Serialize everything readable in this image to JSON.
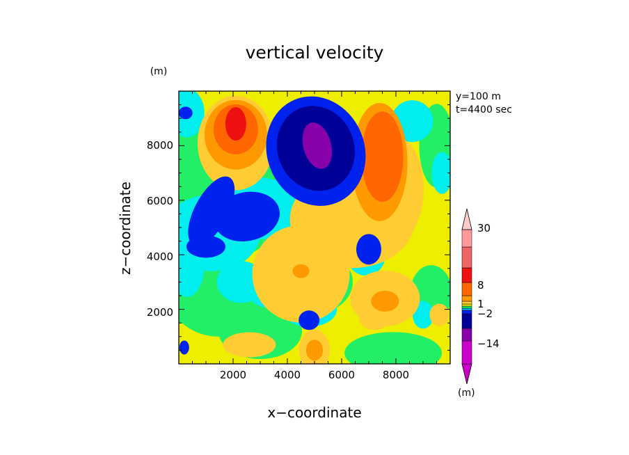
{
  "chart_data": {
    "type": "heatmap",
    "title": "vertical velocity",
    "xlabel": "x−coordinate",
    "ylabel": "z−coordinate",
    "unit_label": "(m)",
    "xlim": [
      0,
      10000
    ],
    "ylim": [
      0,
      10000
    ],
    "xticks": [
      2000,
      4000,
      6000,
      8000
    ],
    "yticks": [
      2000,
      4000,
      6000,
      8000
    ],
    "xtick_labels": [
      "2000",
      "4000",
      "6000",
      "8000"
    ],
    "ytick_labels": [
      "2000",
      "4000",
      "6000",
      "8000"
    ],
    "info": [
      "y=100  m",
      "t=4400 sec"
    ],
    "colorbar": {
      "unit": "(m)",
      "labels": [
        "30",
        "8",
        "1",
        "−2",
        "−14"
      ],
      "label_levels": [
        30,
        8,
        1,
        -2,
        -14
      ],
      "colors": [
        "#cc00cc",
        "#8800aa",
        "#000099",
        "#0022ee",
        "#00b4ff",
        "#22ee66",
        "#eeee00",
        "#ffcc33",
        "#ff9900",
        "#ff6600",
        "#ee1111",
        "#ee6666",
        "#ff9999",
        "#ffcccc"
      ]
    },
    "colors": {
      "purple": "#8800aa",
      "navy": "#000099",
      "blue": "#0022ee",
      "cyan": "#00eeee",
      "green": "#22ee66",
      "yellow": "#eeee00",
      "lightorange": "#ffcc33",
      "orange": "#ff9900",
      "darkorange": "#ff6600",
      "red": "#ee1111"
    }
  }
}
